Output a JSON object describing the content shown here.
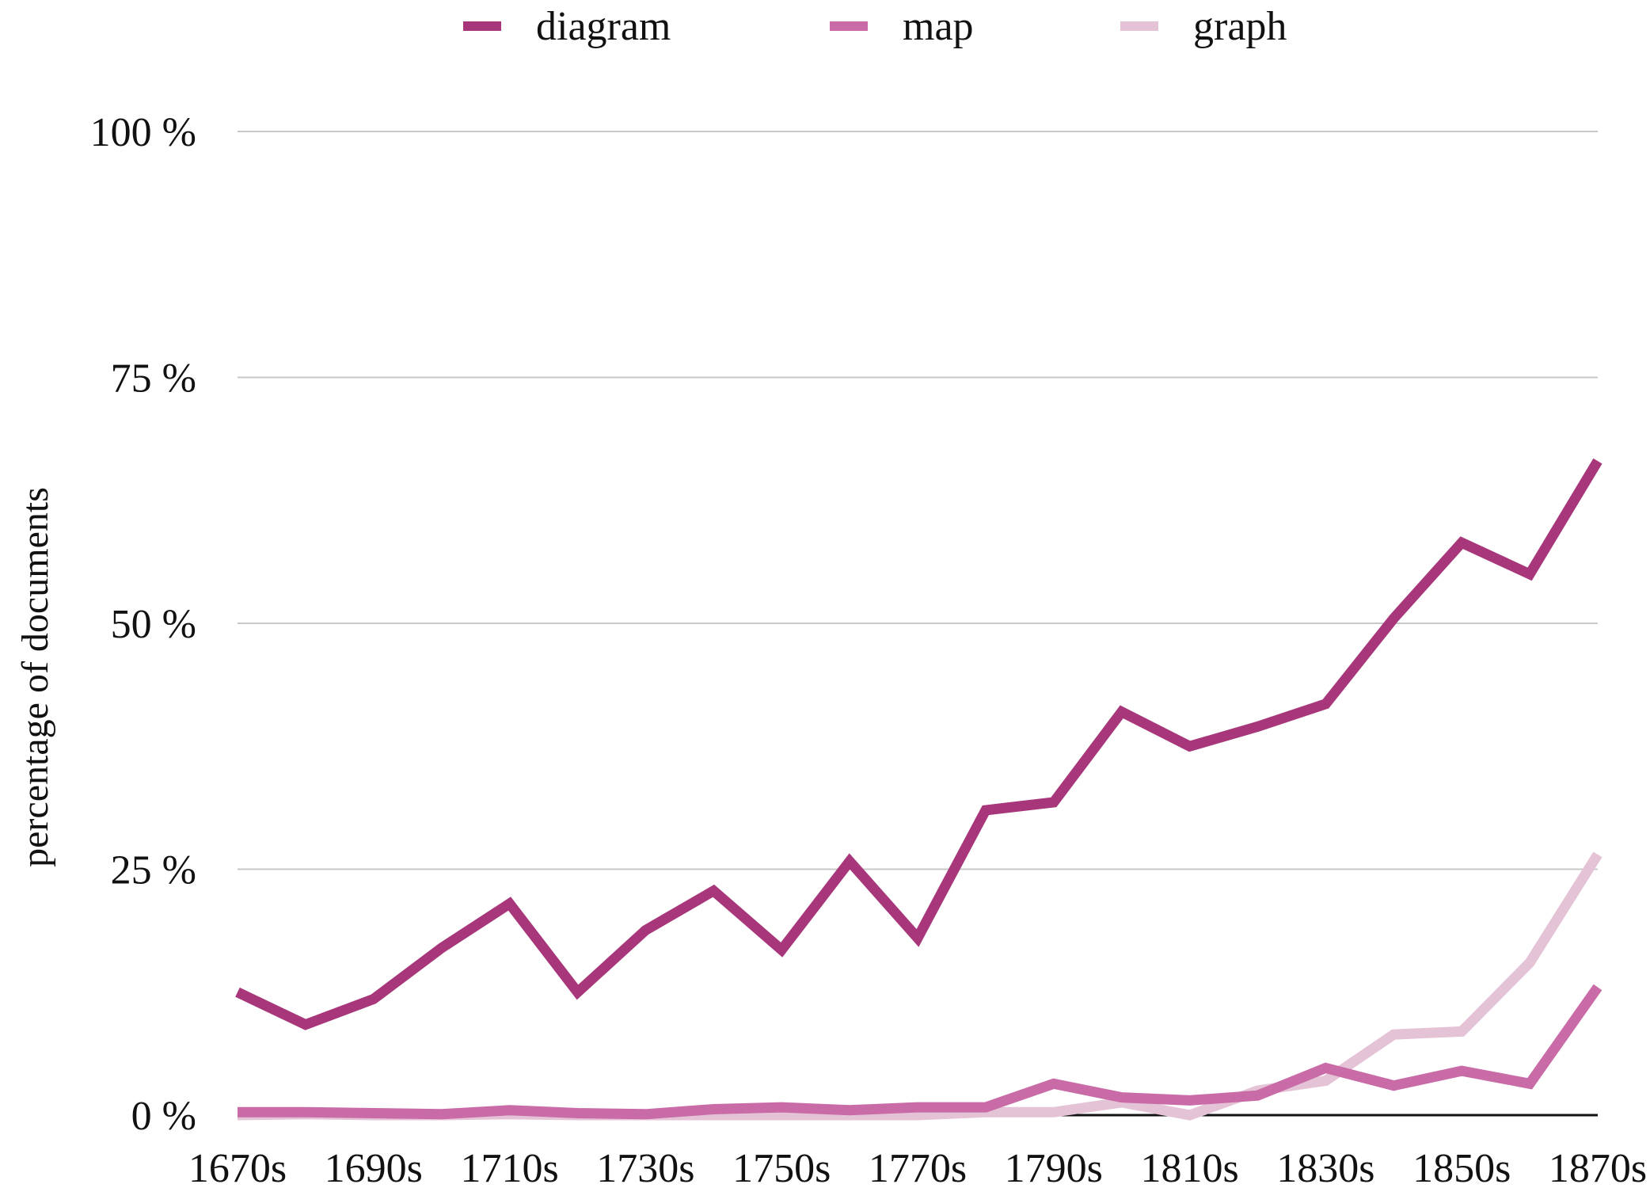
{
  "chart_data": {
    "type": "line",
    "ylabel": "percentage of documents",
    "ylim": [
      0,
      100
    ],
    "y_ticks": [
      {
        "value": 0,
        "label": "0 %"
      },
      {
        "value": 25,
        "label": "25 %"
      },
      {
        "value": 50,
        "label": "50 %"
      },
      {
        "value": 75,
        "label": "75 %"
      },
      {
        "value": 100,
        "label": "100 %"
      }
    ],
    "x": [
      "1670s",
      "1680s",
      "1690s",
      "1700s",
      "1710s",
      "1720s",
      "1730s",
      "1740s",
      "1750s",
      "1760s",
      "1770s",
      "1780s",
      "1790s",
      "1800s",
      "1810s",
      "1820s",
      "1830s",
      "1840s",
      "1850s",
      "1860s",
      "1870s"
    ],
    "x_tick_labels": [
      "1670s",
      "1690s",
      "1710s",
      "1730s",
      "1750s",
      "1770s",
      "1790s",
      "1810s",
      "1830s",
      "1850s",
      "1870s"
    ],
    "grid": true,
    "legend_position": "top",
    "series": [
      {
        "name": "diagram",
        "color": "#a8367a",
        "values": [
          12.5,
          9.2,
          11.8,
          17.0,
          21.5,
          12.5,
          18.8,
          22.8,
          16.8,
          25.8,
          18.0,
          31.0,
          31.8,
          41.0,
          37.5,
          39.5,
          41.8,
          50.5,
          58.2,
          55.0,
          66.5
        ]
      },
      {
        "name": "map",
        "color": "#c86ba6",
        "values": [
          0.3,
          0.3,
          0.2,
          0.1,
          0.5,
          0.2,
          0.1,
          0.6,
          0.8,
          0.5,
          0.8,
          0.8,
          3.2,
          1.8,
          1.5,
          2.0,
          4.8,
          3.0,
          4.5,
          3.2,
          13.0
        ]
      },
      {
        "name": "graph",
        "color": "#e5c3d6",
        "values": [
          0.0,
          0.1,
          0.0,
          0.0,
          0.1,
          0.0,
          0.0,
          0.0,
          0.0,
          0.0,
          0.0,
          0.3,
          0.3,
          1.3,
          0.0,
          2.5,
          3.5,
          8.2,
          8.5,
          15.5,
          26.5
        ]
      }
    ]
  }
}
